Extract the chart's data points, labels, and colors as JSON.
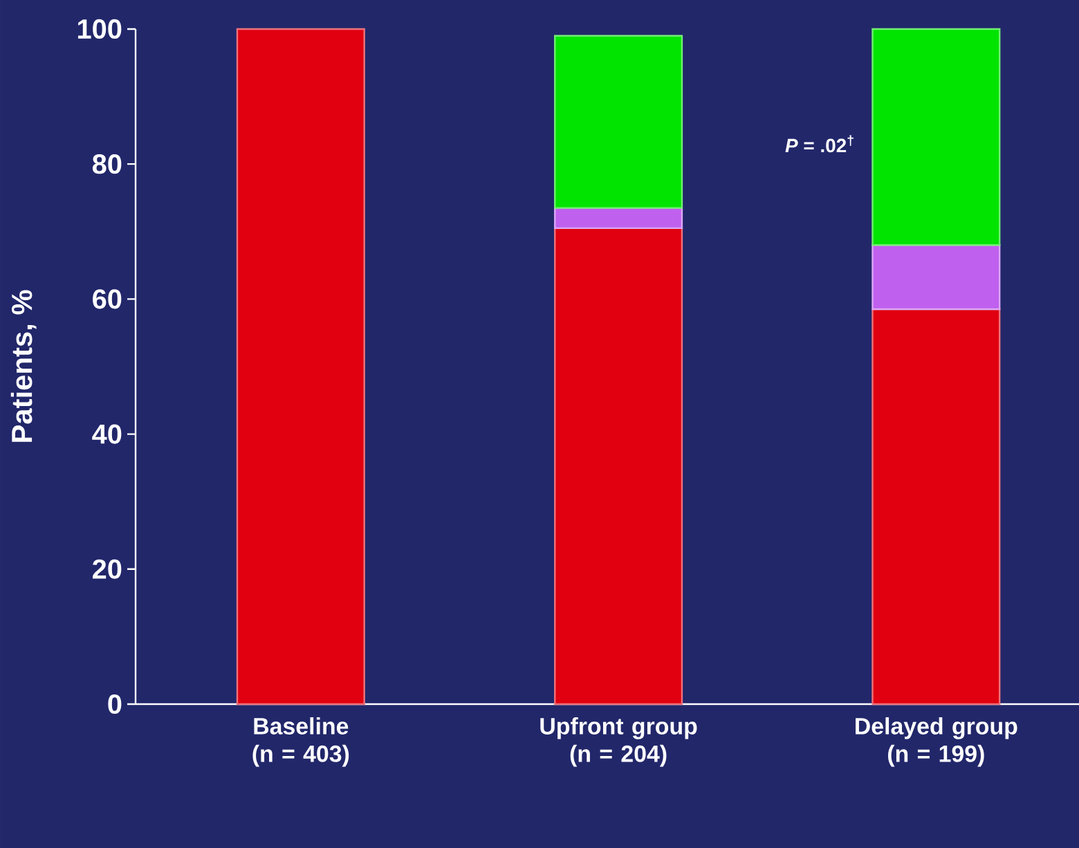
{
  "chart_data": {
    "type": "bar",
    "stacked": true,
    "ylabel": "Patients, %",
    "categories": [
      "Baseline (n = 403)",
      "Upfront group (n = 204)",
      "Delayed group (n = 199)"
    ],
    "series": [
      {
        "color": "#e00010",
        "values": [
          100,
          70.5,
          58.5
        ]
      },
      {
        "color": "#c060ee",
        "values": [
          null,
          3,
          9.5
        ]
      },
      {
        "color": "#00e400",
        "values": [
          null,
          25.5,
          32
        ]
      }
    ],
    "ylim": [
      0,
      100
    ],
    "yticks": [
      0,
      20,
      40,
      60,
      80,
      100
    ],
    "grid": false,
    "annotations": [
      "*P* = .02$^{†}$"
    ]
  }
}
